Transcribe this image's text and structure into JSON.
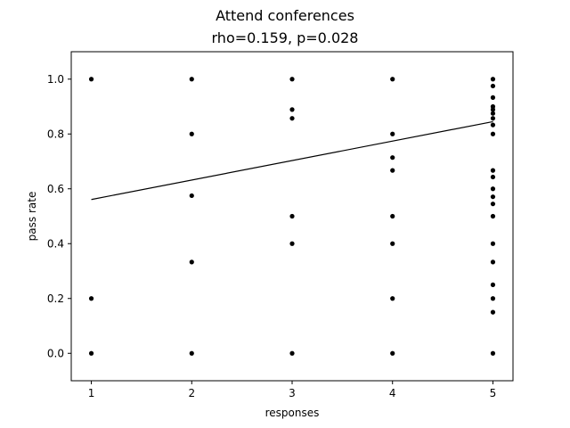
{
  "chart_data": {
    "type": "scatter",
    "title": "Attend conferences",
    "subtitle": "rho=0.159, p=0.028",
    "xlabel": "responses",
    "ylabel": "pass rate",
    "xlim": [
      0.8,
      5.2
    ],
    "ylim": [
      -0.1,
      1.1
    ],
    "xticks": [
      1,
      2,
      3,
      4,
      5
    ],
    "yticks": [
      0.0,
      0.2,
      0.4,
      0.6,
      0.8,
      1.0
    ],
    "ytick_labels": [
      "0.0",
      "0.2",
      "0.4",
      "0.6",
      "0.8",
      "1.0"
    ],
    "grid": false,
    "legend": "none",
    "marker_color": "#000000",
    "points": [
      {
        "x": 1,
        "y": 1.0
      },
      {
        "x": 1,
        "y": 0.2
      },
      {
        "x": 1,
        "y": 0.0
      },
      {
        "x": 2,
        "y": 1.0
      },
      {
        "x": 2,
        "y": 0.8
      },
      {
        "x": 2,
        "y": 0.575
      },
      {
        "x": 2,
        "y": 0.333
      },
      {
        "x": 2,
        "y": 0.0
      },
      {
        "x": 3,
        "y": 1.0
      },
      {
        "x": 3,
        "y": 0.889
      },
      {
        "x": 3,
        "y": 0.857
      },
      {
        "x": 3,
        "y": 0.5
      },
      {
        "x": 3,
        "y": 0.4
      },
      {
        "x": 3,
        "y": 0.0
      },
      {
        "x": 4,
        "y": 1.0
      },
      {
        "x": 4,
        "y": 0.8
      },
      {
        "x": 4,
        "y": 0.714
      },
      {
        "x": 4,
        "y": 0.667
      },
      {
        "x": 4,
        "y": 0.5
      },
      {
        "x": 4,
        "y": 0.4
      },
      {
        "x": 4,
        "y": 0.2
      },
      {
        "x": 4,
        "y": 0.0
      },
      {
        "x": 5,
        "y": 1.0
      },
      {
        "x": 5,
        "y": 0.975
      },
      {
        "x": 5,
        "y": 0.933
      },
      {
        "x": 5,
        "y": 0.9
      },
      {
        "x": 5,
        "y": 0.889
      },
      {
        "x": 5,
        "y": 0.875
      },
      {
        "x": 5,
        "y": 0.857
      },
      {
        "x": 5,
        "y": 0.833
      },
      {
        "x": 5,
        "y": 0.8
      },
      {
        "x": 5,
        "y": 0.667
      },
      {
        "x": 5,
        "y": 0.643
      },
      {
        "x": 5,
        "y": 0.6
      },
      {
        "x": 5,
        "y": 0.571
      },
      {
        "x": 5,
        "y": 0.545
      },
      {
        "x": 5,
        "y": 0.5
      },
      {
        "x": 5,
        "y": 0.4
      },
      {
        "x": 5,
        "y": 0.333
      },
      {
        "x": 5,
        "y": 0.25
      },
      {
        "x": 5,
        "y": 0.2
      },
      {
        "x": 5,
        "y": 0.15
      },
      {
        "x": 5,
        "y": 0.0
      }
    ],
    "fit_line": {
      "x": [
        1,
        5
      ],
      "y": [
        0.561,
        0.845
      ]
    }
  }
}
